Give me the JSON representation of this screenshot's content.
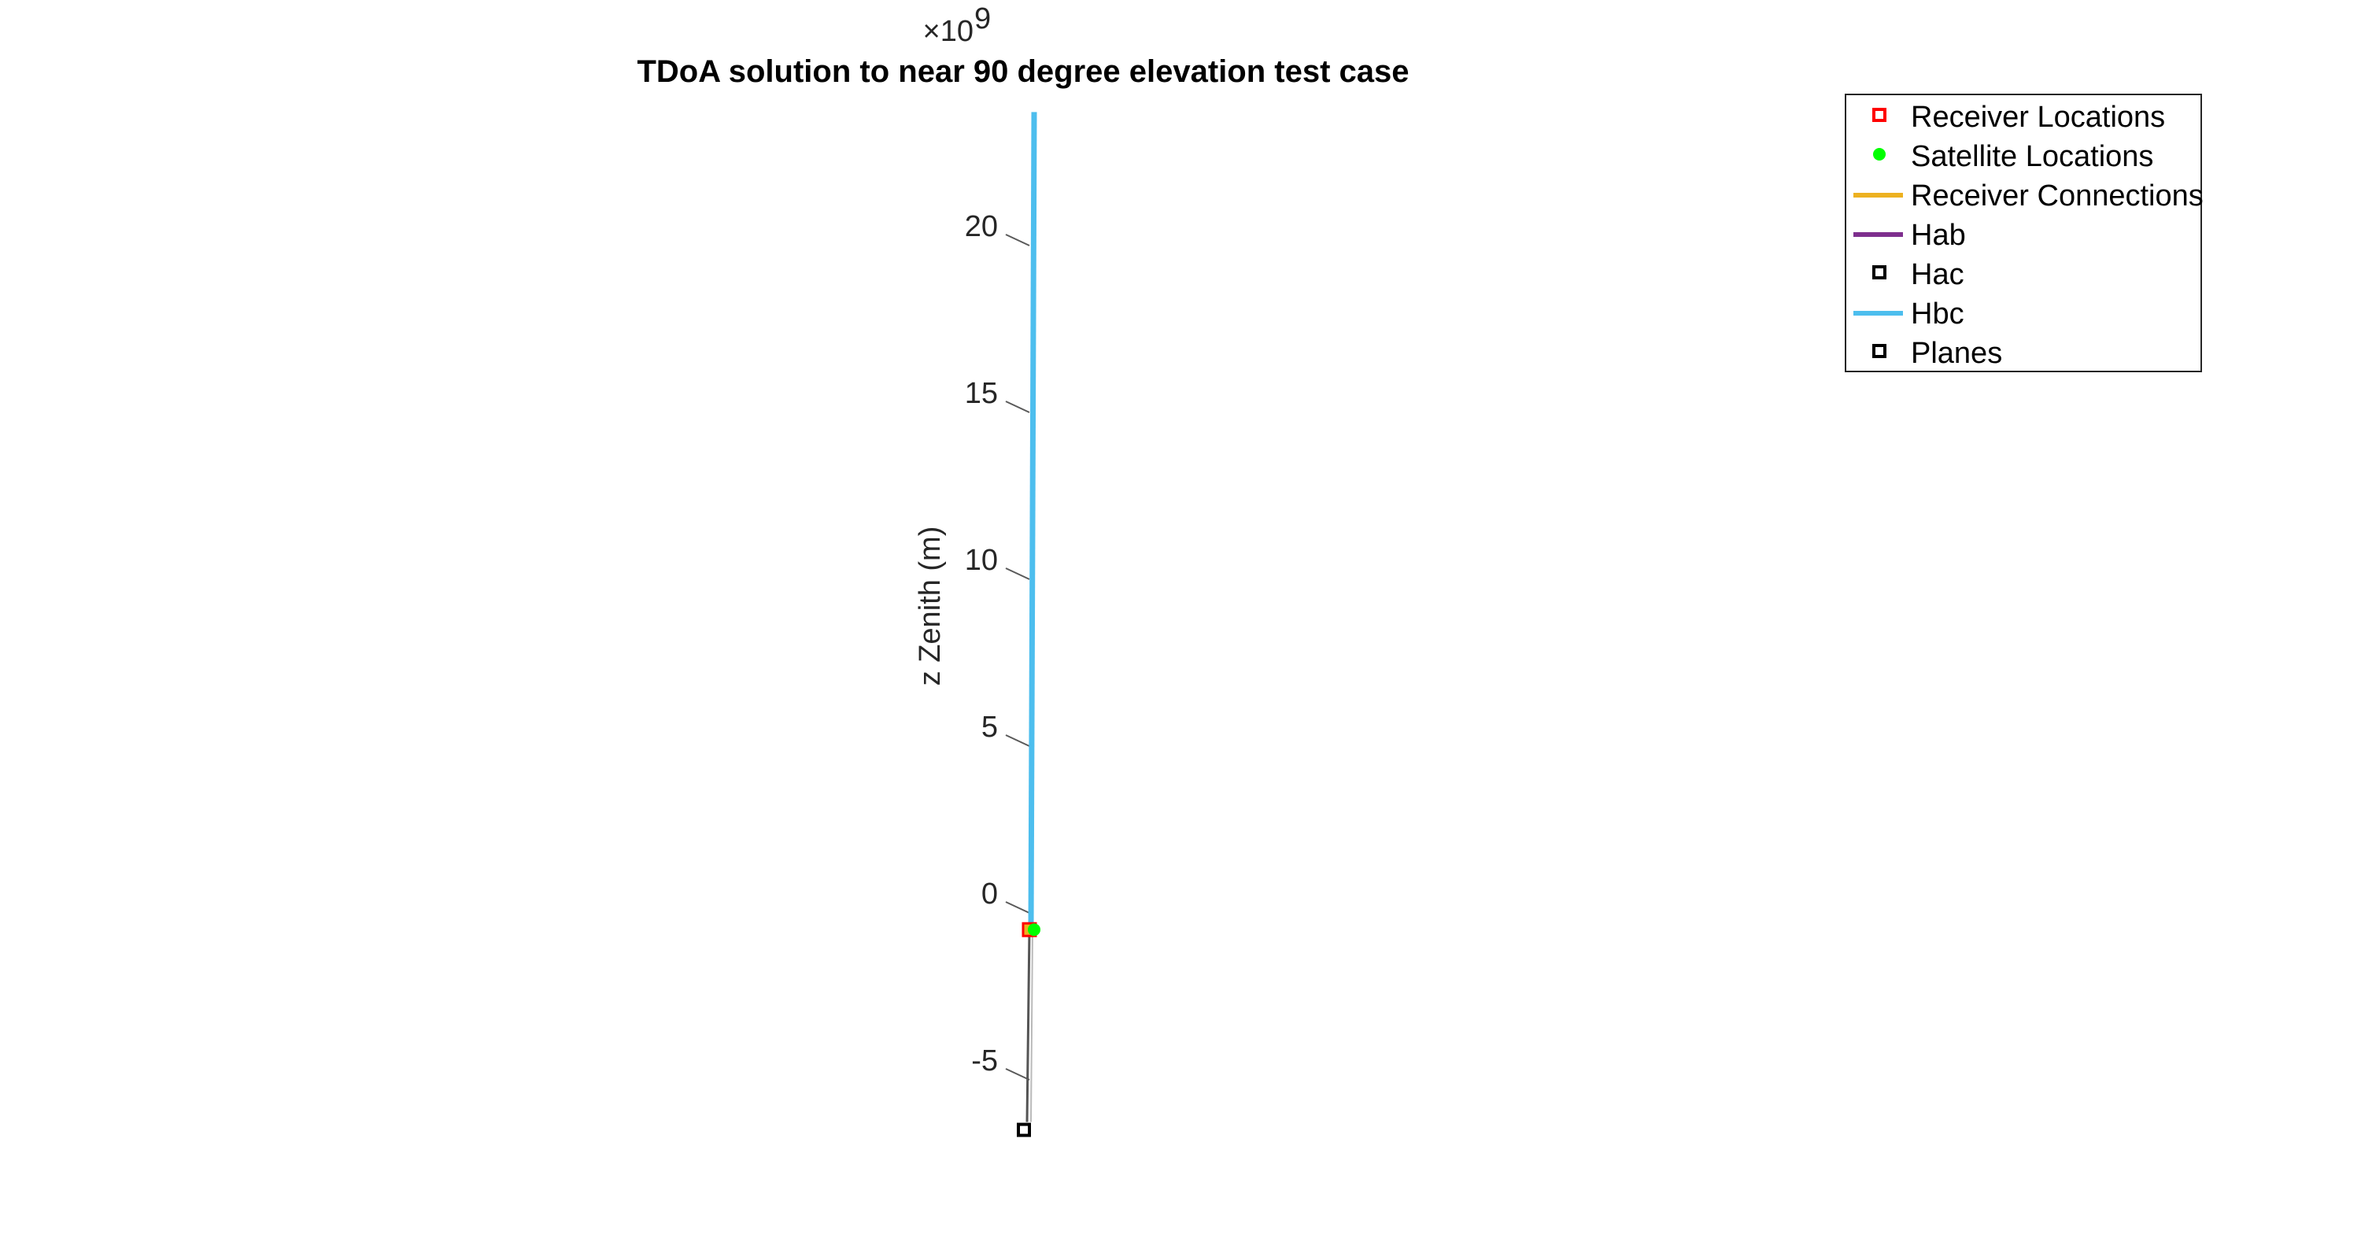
{
  "chart_data": {
    "type": "line",
    "title": "TDoA solution to near 90 degree elevation test case",
    "zlabel": "z Zenith (m)",
    "z_exponent_base": "×10",
    "z_exponent_power": "9",
    "z_ticks": [
      -5,
      0,
      5,
      10,
      15,
      20
    ],
    "z_tick_labels": [
      "-5",
      "0",
      "5",
      "10",
      "15",
      "20"
    ],
    "zlim": [
      -6.5,
      24
    ],
    "grid": false,
    "legend_position": "top-right",
    "series": [
      {
        "name": "Receiver Locations",
        "marker": "square",
        "color": "#ff0000",
        "z": [
          -0.5
        ]
      },
      {
        "name": "Satellite Locations",
        "marker": "circle",
        "color": "#00ff00",
        "z": [
          -0.5
        ]
      },
      {
        "name": "Receiver Connections",
        "marker": "line",
        "color": "#edb120"
      },
      {
        "name": "Hab",
        "marker": "line",
        "color": "#7e2f8e"
      },
      {
        "name": "Hac",
        "marker": "square",
        "color": "#000000",
        "z": [
          -6.5
        ]
      },
      {
        "name": "Hbc",
        "marker": "line",
        "color": "#4dbeee",
        "z": [
          -0.5,
          24
        ]
      },
      {
        "name": "Planes",
        "marker": "square",
        "color": "#000000"
      }
    ]
  }
}
